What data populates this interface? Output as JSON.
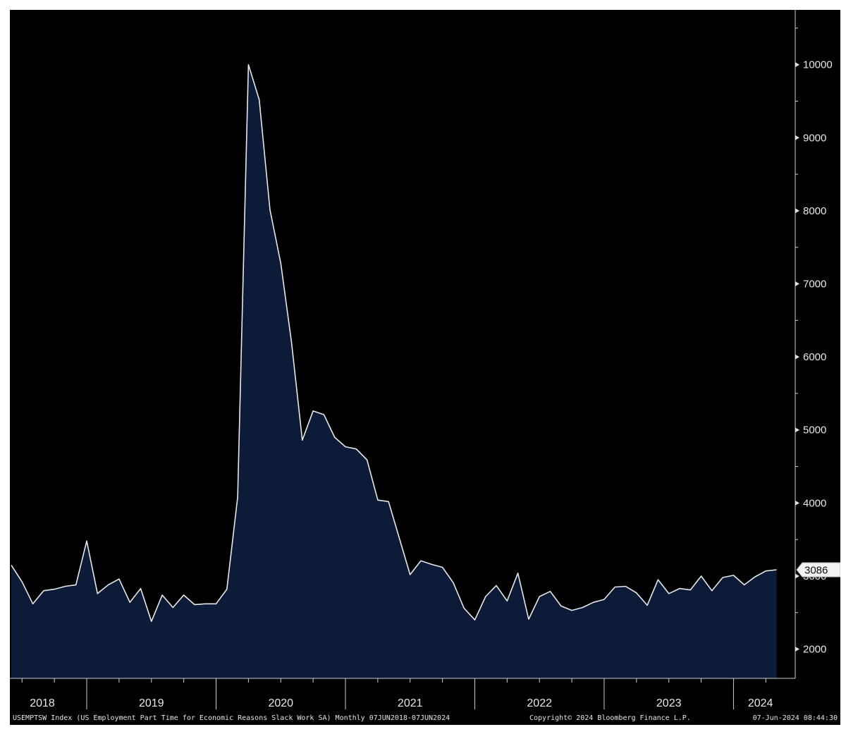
{
  "chart_data": {
    "type": "area",
    "ticker": "USEMPTSW Index",
    "description": "US Employment Part Time for Economic Reasons Slack Work SA",
    "frequency": "Monthly",
    "date_range": "07JUN2018-07JUN2024",
    "copyright": "Copyright© 2024 Bloomberg Finance L.P.",
    "timestamp": "07-Jun-2024 08:44:30",
    "last_value_label": "3086",
    "ylim": [
      1600,
      10750
    ],
    "yticks": [
      2000,
      3000,
      4000,
      5000,
      6000,
      7000,
      8000,
      9000,
      10000
    ],
    "ytick_labels": [
      "2000",
      "3000",
      "4000",
      "5000",
      "6000",
      "7000",
      "8000",
      "9000",
      "10000"
    ],
    "year_labels": [
      "2018",
      "2019",
      "2020",
      "2021",
      "2022",
      "2023",
      "2024"
    ],
    "grid": false,
    "colors": {
      "fill": "#0c1c38",
      "line": "#e8e8e8",
      "background": "#000000"
    },
    "series": [
      {
        "x": [
          "2018-06",
          "2018-07",
          "2018-08",
          "2018-09",
          "2018-10",
          "2018-11",
          "2018-12",
          "2019-01",
          "2019-02",
          "2019-03",
          "2019-04",
          "2019-05",
          "2019-06",
          "2019-07",
          "2019-08",
          "2019-09",
          "2019-10",
          "2019-11",
          "2019-12",
          "2020-01",
          "2020-02",
          "2020-03",
          "2020-04",
          "2020-05",
          "2020-06",
          "2020-07",
          "2020-08",
          "2020-09",
          "2020-10",
          "2020-11",
          "2020-12",
          "2021-01",
          "2021-02",
          "2021-03",
          "2021-04",
          "2021-05",
          "2021-06",
          "2021-07",
          "2021-08",
          "2021-09",
          "2021-10",
          "2021-11",
          "2021-12",
          "2022-01",
          "2022-02",
          "2022-03",
          "2022-04",
          "2022-05",
          "2022-06",
          "2022-07",
          "2022-08",
          "2022-09",
          "2022-10",
          "2022-11",
          "2022-12",
          "2023-01",
          "2023-02",
          "2023-03",
          "2023-04",
          "2023-05",
          "2023-06",
          "2023-07",
          "2023-08",
          "2023-09",
          "2023-10",
          "2023-11",
          "2023-12",
          "2024-01",
          "2024-02",
          "2024-03",
          "2024-04",
          "2024-05"
        ],
        "values": [
          3150,
          2920,
          2620,
          2800,
          2820,
          2860,
          2880,
          3480,
          2760,
          2880,
          2960,
          2640,
          2830,
          2380,
          2740,
          2570,
          2740,
          2610,
          2620,
          2620,
          2820,
          4080,
          10000,
          9520,
          8010,
          7280,
          6200,
          4860,
          5260,
          5210,
          4900,
          4770,
          4740,
          4590,
          4040,
          4020,
          3520,
          3020,
          3210,
          3160,
          3120,
          2910,
          2560,
          2400,
          2720,
          2870,
          2660,
          3040,
          2410,
          2720,
          2790,
          2590,
          2530,
          2570,
          2640,
          2680,
          2850,
          2860,
          2770,
          2600,
          2950,
          2760,
          2830,
          2810,
          3000,
          2800,
          2980,
          3010,
          2880,
          2990,
          3070,
          3086
        ]
      }
    ]
  },
  "footer": {
    "left_text": "USEMPTSW Index (US Employment Part Time for Economic Reasons Slack Work SA)  Monthly 07JUN2018-07JUN2024",
    "center_text": "Copyright© 2024 Bloomberg Finance L.P.",
    "right_text": "07-Jun-2024 08:44:30"
  }
}
